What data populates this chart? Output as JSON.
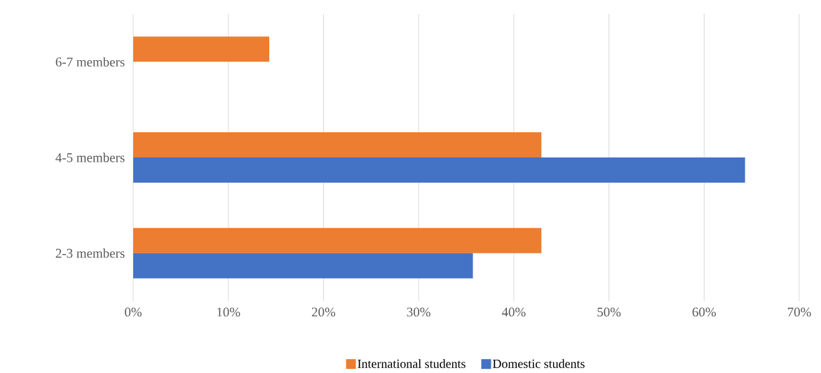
{
  "chart_data": {
    "type": "bar",
    "orientation": "horizontal",
    "categories": [
      "6-7 members",
      "4-5 members",
      "2-3 members"
    ],
    "series": [
      {
        "name": "International students",
        "color": "#ed7d31",
        "values": [
          14.3,
          42.9,
          42.9
        ]
      },
      {
        "name": "Domestic students",
        "color": "#4472c4",
        "values": [
          0,
          64.3,
          35.7
        ]
      }
    ],
    "xlim": [
      0,
      70
    ],
    "xticks": [
      {
        "value": 0,
        "label": "0%"
      },
      {
        "value": 10,
        "label": "10%"
      },
      {
        "value": 20,
        "label": "20%"
      },
      {
        "value": 30,
        "label": "30%"
      },
      {
        "value": 40,
        "label": "40%"
      },
      {
        "value": 50,
        "label": "50%"
      },
      {
        "value": 60,
        "label": "60%"
      },
      {
        "value": 70,
        "label": "70%"
      }
    ],
    "grid": "x",
    "legend": "bottom"
  }
}
